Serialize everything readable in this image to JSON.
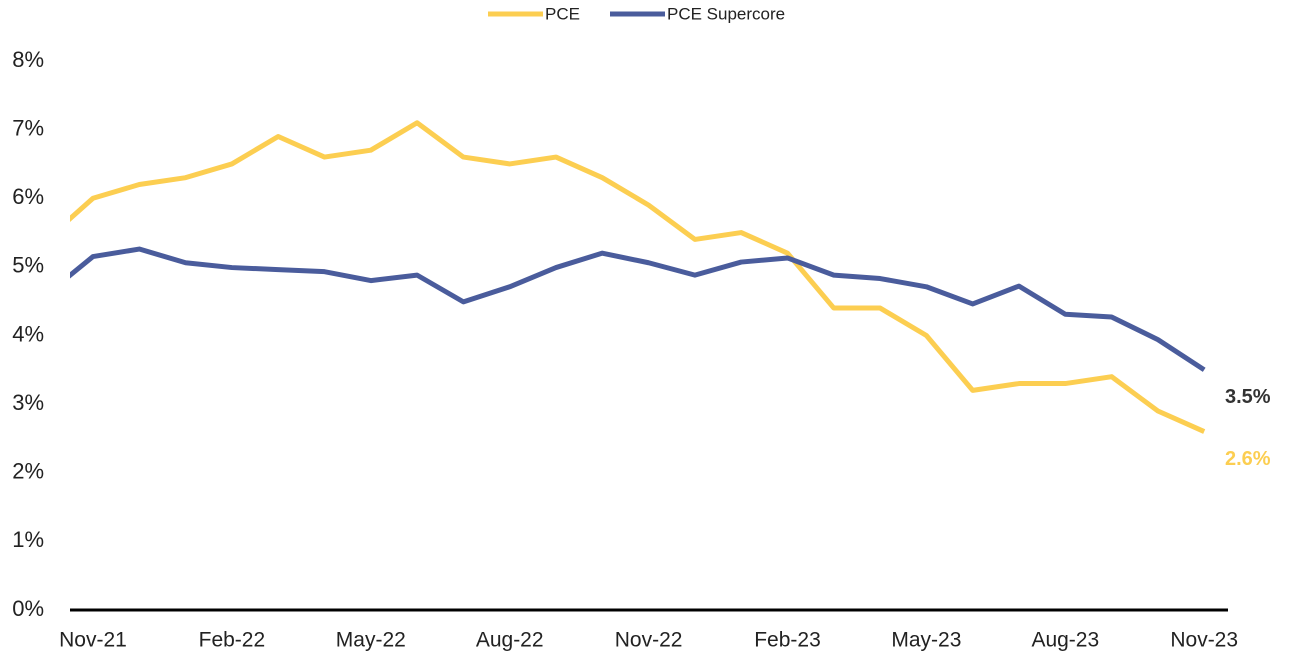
{
  "chart_data": {
    "type": "line",
    "categories": [
      null,
      "Nov-21",
      null,
      null,
      "Feb-22",
      null,
      null,
      "May-22",
      null,
      null,
      "Aug-22",
      null,
      null,
      "Nov-22",
      null,
      null,
      "Feb-23",
      null,
      null,
      "May-23",
      null,
      null,
      "Aug-23",
      null,
      null,
      "Nov-23"
    ],
    "series": [
      {
        "name": "PCE",
        "color": "#fcce51",
        "values": [
          5.4,
          6.0,
          6.2,
          6.3,
          6.5,
          6.9,
          6.6,
          6.7,
          7.1,
          6.6,
          6.5,
          6.6,
          6.3,
          5.9,
          5.4,
          5.5,
          5.2,
          4.4,
          4.4,
          4.0,
          3.2,
          3.3,
          3.3,
          3.4,
          2.9,
          2.6
        ],
        "value_labels": [
          null,
          null,
          null,
          null,
          null,
          null,
          null,
          null,
          null,
          null,
          null,
          null,
          null,
          null,
          null,
          null,
          null,
          null,
          null,
          null,
          null,
          null,
          null,
          null,
          null,
          "2.6%"
        ]
      },
      {
        "name": "PCE Supercore",
        "color": "#4a5c9c",
        "values": [
          4.6,
          5.15,
          5.26,
          5.06,
          4.99,
          4.96,
          4.93,
          4.8,
          4.88,
          4.49,
          4.71,
          4.99,
          5.2,
          5.06,
          4.88,
          5.07,
          5.13,
          4.88,
          4.83,
          4.71,
          4.46,
          4.72,
          4.31,
          4.27,
          3.94,
          3.5
        ],
        "value_labels": [
          null,
          null,
          null,
          null,
          null,
          null,
          null,
          null,
          null,
          null,
          null,
          null,
          null,
          null,
          null,
          null,
          null,
          null,
          null,
          null,
          null,
          null,
          null,
          null,
          null,
          "3.5%"
        ]
      }
    ],
    "ylim": [
      0,
      8
    ],
    "yticks": [
      {
        "value": 0,
        "label": "0%"
      },
      {
        "value": 1,
        "label": "1%"
      },
      {
        "value": 2,
        "label": "2%"
      },
      {
        "value": 3,
        "label": "3%"
      },
      {
        "value": 4,
        "label": "4%"
      },
      {
        "value": 5,
        "label": "5%"
      },
      {
        "value": 6,
        "label": "6%"
      },
      {
        "value": 7,
        "label": "7%"
      },
      {
        "value": 8,
        "label": "8%"
      }
    ],
    "grid": false,
    "legend": "top"
  }
}
